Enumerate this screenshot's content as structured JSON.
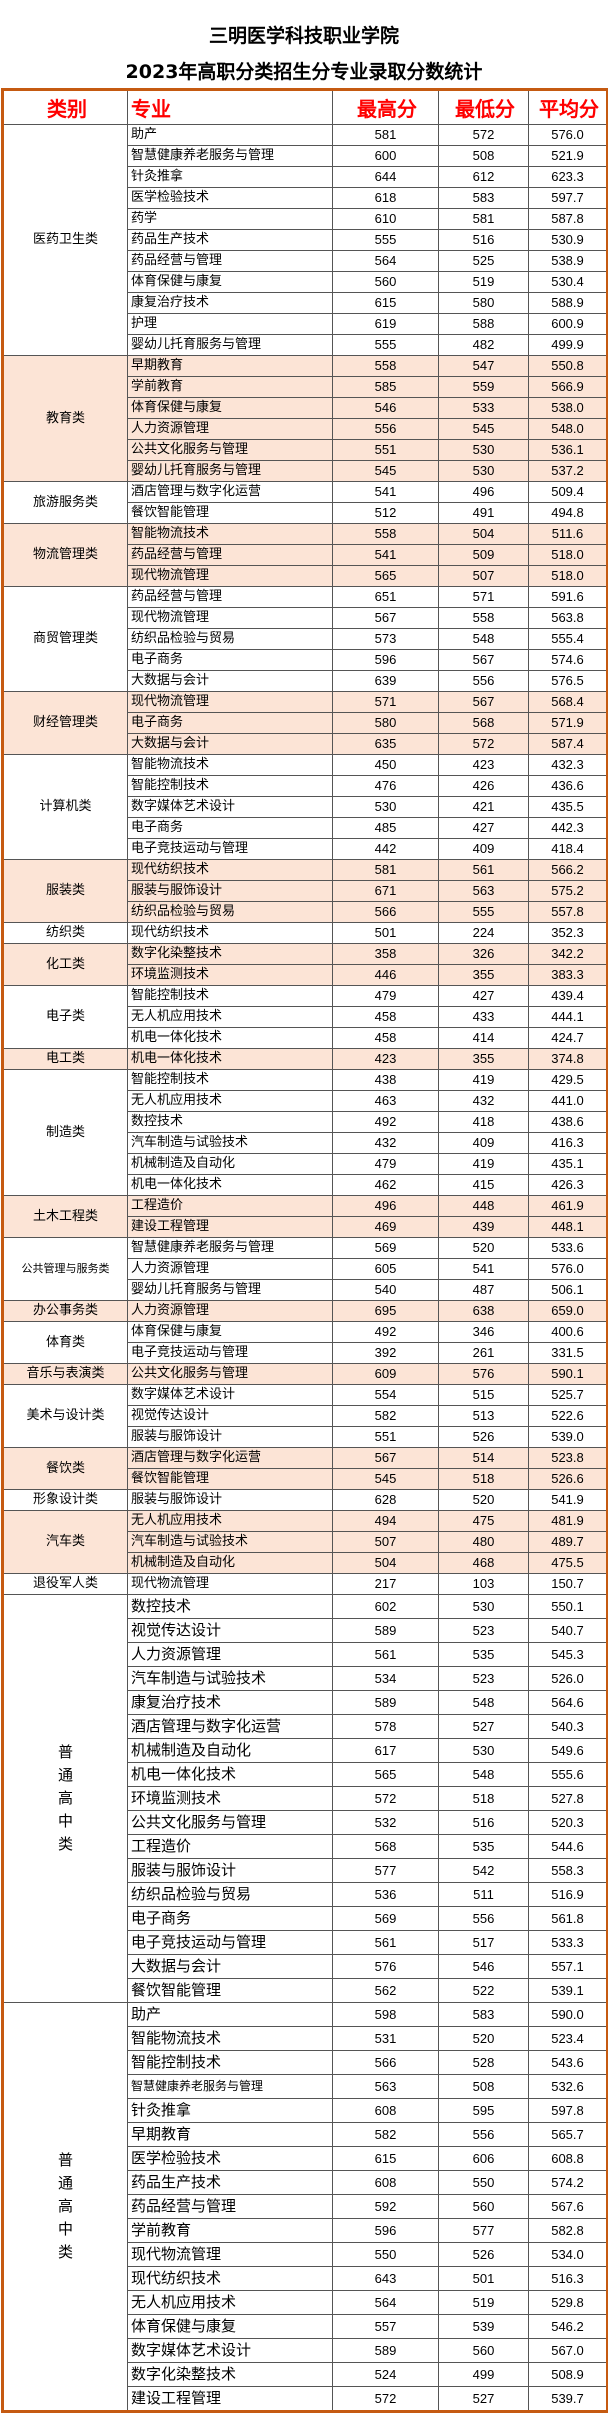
{
  "title": {
    "line1": "三明医学科技职业学院",
    "line2": "2023年高职分类招生分专业录取分数统计"
  },
  "headers": {
    "category": "类别",
    "major": "专业",
    "max": "最高分",
    "min": "最低分",
    "avg": "平均分"
  },
  "colors": {
    "border": "#c55a11",
    "header_text": "#ff0000",
    "shade": "#fce4d6"
  },
  "groups": [
    {
      "category": "医药卫生类",
      "shaded": false,
      "rows": [
        [
          "助产",
          "581",
          "572",
          "576.0"
        ],
        [
          "智慧健康养老服务与管理",
          "600",
          "508",
          "521.9"
        ],
        [
          "针灸推拿",
          "644",
          "612",
          "623.3"
        ],
        [
          "医学检验技术",
          "618",
          "583",
          "597.7"
        ],
        [
          "药学",
          "610",
          "581",
          "587.8"
        ],
        [
          "药品生产技术",
          "555",
          "516",
          "530.9"
        ],
        [
          "药品经营与管理",
          "564",
          "525",
          "538.9"
        ],
        [
          "体育保健与康复",
          "560",
          "519",
          "530.4"
        ],
        [
          "康复治疗技术",
          "615",
          "580",
          "588.9"
        ],
        [
          "护理",
          "619",
          "588",
          "600.9"
        ],
        [
          "婴幼儿托育服务与管理",
          "555",
          "482",
          "499.9"
        ]
      ]
    },
    {
      "category": "教育类",
      "shaded": true,
      "rows": [
        [
          "早期教育",
          "558",
          "547",
          "550.8"
        ],
        [
          "学前教育",
          "585",
          "559",
          "566.9"
        ],
        [
          "体育保健与康复",
          "546",
          "533",
          "538.0"
        ],
        [
          "人力资源管理",
          "556",
          "545",
          "548.0"
        ],
        [
          "公共文化服务与管理",
          "551",
          "530",
          "536.1"
        ],
        [
          "婴幼儿托育服务与管理",
          "545",
          "530",
          "537.2"
        ]
      ]
    },
    {
      "category": "旅游服务类",
      "shaded": false,
      "rows": [
        [
          "酒店管理与数字化运营",
          "541",
          "496",
          "509.4"
        ],
        [
          "餐饮智能管理",
          "512",
          "491",
          "494.8"
        ]
      ]
    },
    {
      "category": "物流管理类",
      "shaded": true,
      "rows": [
        [
          "智能物流技术",
          "558",
          "504",
          "511.6"
        ],
        [
          "药品经营与管理",
          "541",
          "509",
          "518.0"
        ],
        [
          "现代物流管理",
          "565",
          "507",
          "518.0"
        ]
      ]
    },
    {
      "category": "商贸管理类",
      "shaded": false,
      "rows": [
        [
          "药品经营与管理",
          "651",
          "571",
          "591.6"
        ],
        [
          "现代物流管理",
          "567",
          "558",
          "563.8"
        ],
        [
          "纺织品检验与贸易",
          "573",
          "548",
          "555.4"
        ],
        [
          "电子商务",
          "596",
          "567",
          "574.6"
        ],
        [
          "大数据与会计",
          "639",
          "556",
          "576.5"
        ]
      ]
    },
    {
      "category": "财经管理类",
      "shaded": true,
      "rows": [
        [
          "现代物流管理",
          "571",
          "567",
          "568.4"
        ],
        [
          "电子商务",
          "580",
          "568",
          "571.9"
        ],
        [
          "大数据与会计",
          "635",
          "572",
          "587.4"
        ]
      ]
    },
    {
      "category": "计算机类",
      "shaded": false,
      "rows": [
        [
          "智能物流技术",
          "450",
          "423",
          "432.3"
        ],
        [
          "智能控制技术",
          "476",
          "426",
          "436.6"
        ],
        [
          "数字媒体艺术设计",
          "530",
          "421",
          "435.5"
        ],
        [
          "电子商务",
          "485",
          "427",
          "442.3"
        ],
        [
          "电子竞技运动与管理",
          "442",
          "409",
          "418.4"
        ]
      ]
    },
    {
      "category": "服装类",
      "shaded": true,
      "rows": [
        [
          "现代纺织技术",
          "581",
          "561",
          "566.2"
        ],
        [
          "服装与服饰设计",
          "671",
          "563",
          "575.2"
        ],
        [
          "纺织品检验与贸易",
          "566",
          "555",
          "557.8"
        ]
      ]
    },
    {
      "category": "纺织类",
      "shaded": false,
      "rows": [
        [
          "现代纺织技术",
          "501",
          "224",
          "352.3"
        ]
      ]
    },
    {
      "category": "化工类",
      "shaded": true,
      "rows": [
        [
          "数字化染整技术",
          "358",
          "326",
          "342.2"
        ],
        [
          "环境监测技术",
          "446",
          "355",
          "383.3"
        ]
      ]
    },
    {
      "category": "电子类",
      "shaded": false,
      "rows": [
        [
          "智能控制技术",
          "479",
          "427",
          "439.4"
        ],
        [
          "无人机应用技术",
          "458",
          "433",
          "444.1"
        ],
        [
          "机电一体化技术",
          "458",
          "414",
          "424.7"
        ]
      ]
    },
    {
      "category": "电工类",
      "shaded": true,
      "rows": [
        [
          "机电一体化技术",
          "423",
          "355",
          "374.8"
        ]
      ]
    },
    {
      "category": "制造类",
      "shaded": false,
      "rows": [
        [
          "智能控制技术",
          "438",
          "419",
          "429.5"
        ],
        [
          "无人机应用技术",
          "463",
          "432",
          "441.0"
        ],
        [
          "数控技术",
          "492",
          "418",
          "438.6"
        ],
        [
          "汽车制造与试验技术",
          "432",
          "409",
          "416.3"
        ],
        [
          "机械制造及自动化",
          "479",
          "419",
          "435.1"
        ],
        [
          "机电一体化技术",
          "462",
          "415",
          "426.3"
        ]
      ]
    },
    {
      "category": "土木工程类",
      "shaded": true,
      "rows": [
        [
          "工程造价",
          "496",
          "448",
          "461.9"
        ],
        [
          "建设工程管理",
          "469",
          "439",
          "448.1"
        ]
      ]
    },
    {
      "category": "公共管理与服务类",
      "shaded": false,
      "small": true,
      "rows": [
        [
          "智慧健康养老服务与管理",
          "569",
          "520",
          "533.6"
        ],
        [
          "人力资源管理",
          "605",
          "541",
          "576.0"
        ],
        [
          "婴幼儿托育服务与管理",
          "540",
          "487",
          "506.1"
        ]
      ]
    },
    {
      "category": "办公事务类",
      "shaded": true,
      "rows": [
        [
          "人力资源管理",
          "695",
          "638",
          "659.0"
        ]
      ]
    },
    {
      "category": "体育类",
      "shaded": false,
      "rows": [
        [
          "体育保健与康复",
          "492",
          "346",
          "400.6"
        ],
        [
          "电子竞技运动与管理",
          "392",
          "261",
          "331.5"
        ]
      ]
    },
    {
      "category": "音乐与表演类",
      "shaded": true,
      "rows": [
        [
          "公共文化服务与管理",
          "609",
          "576",
          "590.1"
        ]
      ]
    },
    {
      "category": "美术与设计类",
      "shaded": false,
      "rows": [
        [
          "数字媒体艺术设计",
          "554",
          "515",
          "525.7"
        ],
        [
          "视觉传达设计",
          "582",
          "513",
          "522.6"
        ],
        [
          "服装与服饰设计",
          "551",
          "526",
          "539.0"
        ]
      ]
    },
    {
      "category": "餐饮类",
      "shaded": true,
      "rows": [
        [
          "酒店管理与数字化运营",
          "567",
          "514",
          "523.8"
        ],
        [
          "餐饮智能管理",
          "545",
          "518",
          "526.6"
        ]
      ]
    },
    {
      "category": "形象设计类",
      "shaded": false,
      "rows": [
        [
          "服装与服饰设计",
          "628",
          "520",
          "541.9"
        ]
      ]
    },
    {
      "category": "汽车类",
      "shaded": true,
      "rows": [
        [
          "无人机应用技术",
          "494",
          "475",
          "481.9"
        ],
        [
          "汽车制造与试验技术",
          "507",
          "480",
          "489.7"
        ],
        [
          "机械制造及自动化",
          "504",
          "468",
          "475.5"
        ]
      ]
    },
    {
      "category": "退役军人类",
      "shaded": false,
      "rows": [
        [
          "现代物流管理",
          "217",
          "103",
          "150.7"
        ]
      ]
    },
    {
      "category": "普通高中类",
      "shaded": false,
      "vertical": true,
      "rows": [
        [
          "数控技术",
          "602",
          "530",
          "550.1"
        ],
        [
          "视觉传达设计",
          "589",
          "523",
          "540.7"
        ],
        [
          "人力资源管理",
          "561",
          "535",
          "545.3"
        ],
        [
          "汽车制造与试验技术",
          "534",
          "523",
          "526.0"
        ],
        [
          "康复治疗技术",
          "589",
          "548",
          "564.6"
        ],
        [
          "酒店管理与数字化运营",
          "578",
          "527",
          "540.3"
        ],
        [
          "机械制造及自动化",
          "617",
          "530",
          "549.6"
        ],
        [
          "机电一体化技术",
          "565",
          "548",
          "555.6"
        ],
        [
          "环境监测技术",
          "572",
          "518",
          "527.8"
        ],
        [
          "公共文化服务与管理",
          "532",
          "516",
          "520.3"
        ],
        [
          "工程造价",
          "568",
          "535",
          "544.6"
        ],
        [
          "服装与服饰设计",
          "577",
          "542",
          "558.3"
        ],
        [
          "纺织品检验与贸易",
          "536",
          "511",
          "516.9"
        ],
        [
          "电子商务",
          "569",
          "556",
          "561.8"
        ],
        [
          "电子竞技运动与管理",
          "561",
          "517",
          "533.3"
        ],
        [
          "大数据与会计",
          "576",
          "546",
          "557.1"
        ],
        [
          "餐饮智能管理",
          "562",
          "522",
          "539.1"
        ]
      ]
    },
    {
      "category": "普通高中类",
      "shaded": false,
      "vertical": true,
      "rows": [
        [
          "助产",
          "598",
          "583",
          "590.0"
        ],
        [
          "智能物流技术",
          "531",
          "520",
          "523.4"
        ],
        [
          "智能控制技术",
          "566",
          "528",
          "543.6"
        ],
        [
          "智慧健康养老服务与管理",
          "563",
          "508",
          "532.6"
        ],
        [
          "针灸推拿",
          "608",
          "595",
          "597.8"
        ],
        [
          "早期教育",
          "582",
          "556",
          "565.7"
        ],
        [
          "医学检验技术",
          "615",
          "606",
          "608.8"
        ],
        [
          "药品生产技术",
          "608",
          "550",
          "574.2"
        ],
        [
          "药品经营与管理",
          "592",
          "560",
          "567.6"
        ],
        [
          "学前教育",
          "596",
          "577",
          "582.8"
        ],
        [
          "现代物流管理",
          "550",
          "526",
          "534.0"
        ],
        [
          "现代纺织技术",
          "643",
          "501",
          "516.3"
        ],
        [
          "无人机应用技术",
          "564",
          "519",
          "529.8"
        ],
        [
          "体育保健与康复",
          "557",
          "539",
          "546.2"
        ],
        [
          "数字媒体艺术设计",
          "589",
          "560",
          "567.0"
        ],
        [
          "数字化染整技术",
          "524",
          "499",
          "508.9"
        ],
        [
          "建设工程管理",
          "572",
          "527",
          "539.7"
        ]
      ]
    }
  ]
}
